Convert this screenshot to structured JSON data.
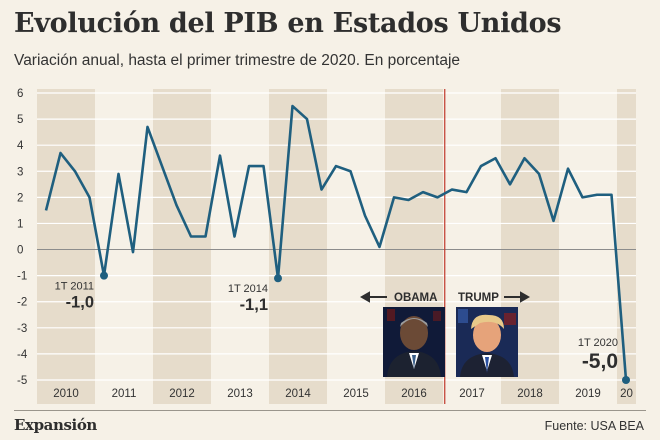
{
  "header": {
    "title": "Evolución del PIB en Estados Unidos",
    "subtitle": "Variación anual, hasta el primer trimestre de 2020. En porcentaje"
  },
  "footer": {
    "brand": "Expansión",
    "source": "Fuente: USA BEA"
  },
  "colors": {
    "line": "#1f5f7f",
    "band": "#e6dccb",
    "background": "#f6f1e7",
    "marker": "#c0392b",
    "text": "#2e2e2e"
  },
  "eras": {
    "left": {
      "label": "OBAMA",
      "arrow": "left-arrow-icon"
    },
    "right": {
      "label": "TRUMP",
      "arrow": "right-arrow-icon"
    },
    "photos": [
      "obama-portrait",
      "trump-portrait"
    ]
  },
  "chart_data": {
    "type": "line",
    "ylim": [
      -5,
      6
    ],
    "yticks": [
      6,
      5,
      4,
      3,
      2,
      1,
      0,
      -1,
      -2,
      -3,
      -4,
      -5
    ],
    "year_labels": [
      "2010",
      "2011",
      "2012",
      "2013",
      "2014",
      "2015",
      "2016",
      "2017",
      "2018",
      "2019",
      "20"
    ],
    "grid": true,
    "series": [
      {
        "x": [
          "2010-Q1",
          "2010-Q2",
          "2010-Q3",
          "2010-Q4",
          "2011-Q1",
          "2011-Q2",
          "2011-Q3",
          "2011-Q4",
          "2012-Q1",
          "2012-Q2",
          "2012-Q3",
          "2012-Q4",
          "2013-Q1",
          "2013-Q2",
          "2013-Q3",
          "2013-Q4",
          "2014-Q1",
          "2014-Q2",
          "2014-Q3",
          "2014-Q4",
          "2015-Q1",
          "2015-Q2",
          "2015-Q3",
          "2015-Q4",
          "2016-Q1",
          "2016-Q2",
          "2016-Q3",
          "2016-Q4",
          "2017-Q1",
          "2017-Q2",
          "2017-Q3",
          "2017-Q4",
          "2018-Q1",
          "2018-Q2",
          "2018-Q3",
          "2018-Q4",
          "2019-Q1",
          "2019-Q2",
          "2019-Q3",
          "2019-Q4",
          "2020-Q1"
        ],
        "values": [
          1.5,
          3.7,
          3.0,
          2.0,
          -1.0,
          2.9,
          -0.1,
          4.7,
          3.2,
          1.7,
          0.5,
          0.5,
          3.6,
          0.5,
          3.2,
          3.2,
          -1.1,
          5.5,
          5.0,
          2.3,
          3.2,
          3.0,
          1.3,
          0.1,
          2.0,
          1.9,
          2.2,
          2.0,
          2.3,
          2.2,
          3.2,
          3.5,
          2.5,
          3.5,
          2.9,
          1.1,
          3.1,
          2.0,
          2.1,
          2.1,
          -5.0
        ]
      }
    ],
    "annotations": [
      {
        "index": 4,
        "period": "1T 2011",
        "value": "-1,0"
      },
      {
        "index": 16,
        "period": "1T 2014",
        "value": "-1,1"
      },
      {
        "index": 40,
        "period": "1T 2020",
        "value": "-5,0"
      }
    ]
  }
}
